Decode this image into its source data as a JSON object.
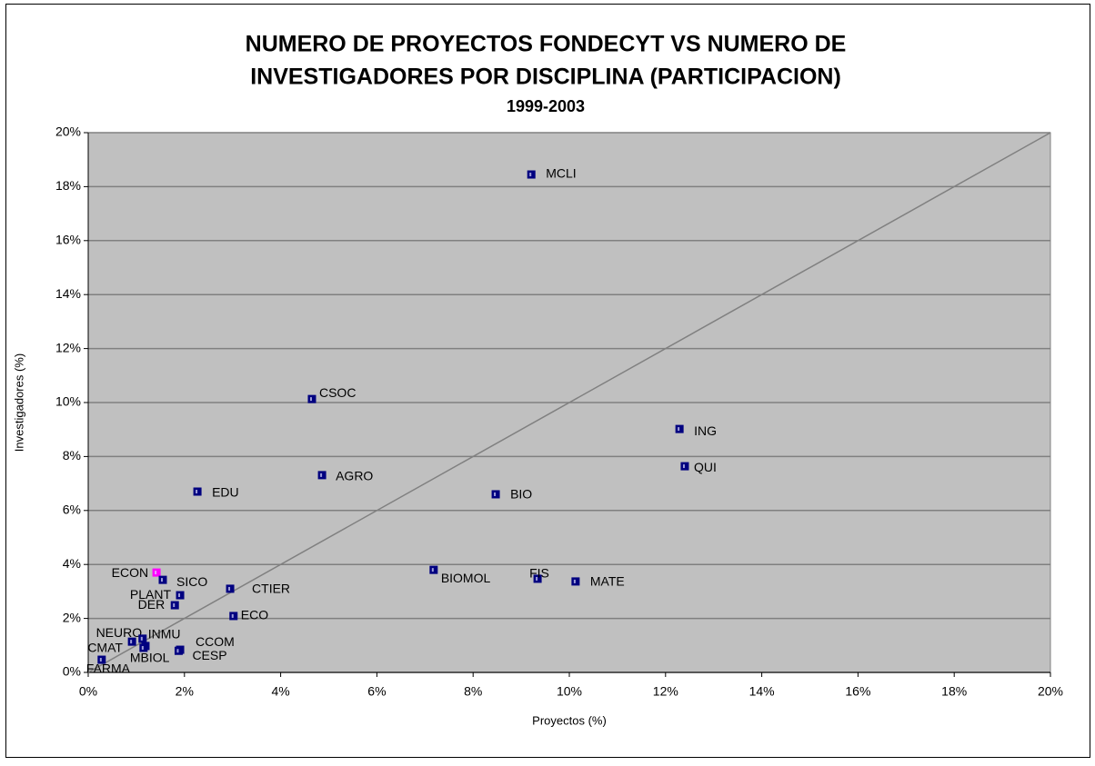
{
  "chart_data": {
    "type": "scatter",
    "title": "NUMERO DE PROYECTOS FONDECYT VS NUMERO DE",
    "title_line2": "INVESTIGADORES POR DISCIPLINA (PARTICIPACION)",
    "subtitle": "1999-2003",
    "x_label": "Proyectos (%)",
    "y_label": "Investigadores (%)",
    "labels": [
      "MCLI",
      "CSOC",
      "ING",
      "QUI",
      "AGRO",
      "EDU",
      "BIO",
      "BIOMOL",
      "FIS",
      "MATE",
      "ECON",
      "SICO",
      "PLANT",
      "DER",
      "CTIER",
      "ECO",
      "NEURO",
      "INMU",
      "CMAT",
      "MBIOL",
      "CCOM",
      "CESP",
      "FARMA"
    ],
    "x": [
      9.21,
      4.65,
      12.29,
      12.4,
      4.86,
      2.27,
      8.47,
      7.18,
      9.34,
      10.13,
      1.42,
      1.55,
      1.91,
      1.8,
      2.95,
      3.02,
      0.91,
      1.13,
      1.19,
      1.15,
      1.91,
      1.88,
      0.28
    ],
    "values": [
      18.45,
      10.13,
      9.02,
      7.64,
      7.31,
      6.7,
      6.6,
      3.8,
      3.47,
      3.37,
      3.7,
      3.43,
      2.86,
      2.49,
      3.1,
      2.09,
      1.14,
      1.25,
      0.98,
      0.91,
      0.84,
      0.8,
      0.47
    ],
    "colors": [
      "#000080",
      "#000080",
      "#000080",
      "#000080",
      "#000080",
      "#000080",
      "#000080",
      "#000080",
      "#000080",
      "#000080",
      "#ff00ff",
      "#000080",
      "#000080",
      "#000080",
      "#000080",
      "#000080",
      "#000080",
      "#000080",
      "#000080",
      "#000080",
      "#000080",
      "#000080",
      "#000080"
    ],
    "xlim": [
      0,
      20
    ],
    "ylim": [
      0,
      20
    ],
    "xticks": [
      {
        "value": 0,
        "label": "0%"
      },
      {
        "value": 2,
        "label": "2%"
      },
      {
        "value": 4,
        "label": "4%"
      },
      {
        "value": 6,
        "label": "6%"
      },
      {
        "value": 8,
        "label": "8%"
      },
      {
        "value": 10,
        "label": "10%"
      },
      {
        "value": 12,
        "label": "12%"
      },
      {
        "value": 14,
        "label": "14%"
      },
      {
        "value": 16,
        "label": "16%"
      },
      {
        "value": 18,
        "label": "18%"
      },
      {
        "value": 20,
        "label": "20%"
      }
    ],
    "yticks": [
      {
        "value": 0,
        "label": "0%"
      },
      {
        "value": 2,
        "label": "2%"
      },
      {
        "value": 4,
        "label": "4%"
      },
      {
        "value": 6,
        "label": "6%"
      },
      {
        "value": 8,
        "label": "8%"
      },
      {
        "value": 10,
        "label": "10%"
      },
      {
        "value": 12,
        "label": "12%"
      },
      {
        "value": 14,
        "label": "14%"
      },
      {
        "value": 16,
        "label": "16%"
      },
      {
        "value": 18,
        "label": "18%"
      },
      {
        "value": 20,
        "label": "20%"
      }
    ],
    "grid": true,
    "plot_background": "#c0c0c0",
    "diagonal": true
  }
}
